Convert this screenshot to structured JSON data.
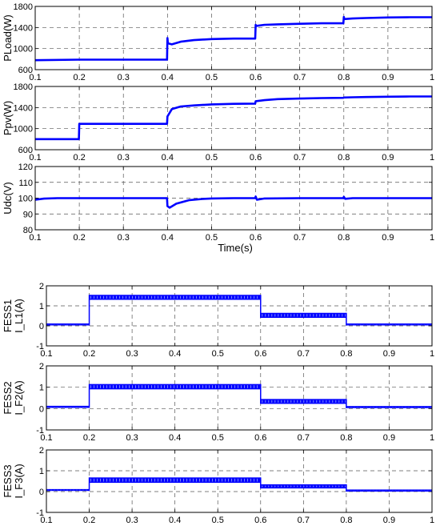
{
  "chart_data": [
    {
      "type": "line",
      "ylabel": "PLoad(W)",
      "xlabel": "",
      "xlim": [
        0.1,
        1.0
      ],
      "ylim": [
        600,
        1800
      ],
      "xticks": [
        "0.1",
        "0.2",
        "0.3",
        "0.4",
        "0.5",
        "0.6",
        "0.7",
        "0.8",
        "0.9",
        "1"
      ],
      "yticks": [
        "600",
        "1000",
        "1400",
        "1800"
      ],
      "grid": true,
      "series": [
        {
          "color": "#0000ff",
          "x": [
            0.1,
            0.2,
            0.3,
            0.399,
            0.4,
            0.401,
            0.41,
            0.43,
            0.46,
            0.5,
            0.55,
            0.599,
            0.6,
            0.601,
            0.62,
            0.65,
            0.7,
            0.75,
            0.799,
            0.8,
            0.801,
            0.82,
            0.85,
            0.9,
            0.95,
            1.0
          ],
          "y": [
            780,
            790,
            790,
            790,
            1200,
            1100,
            1080,
            1130,
            1160,
            1180,
            1190,
            1190,
            1450,
            1430,
            1450,
            1460,
            1470,
            1480,
            1480,
            1600,
            1560,
            1570,
            1580,
            1590,
            1595,
            1595
          ]
        }
      ]
    },
    {
      "type": "line",
      "ylabel": "Ppv(W)",
      "xlabel": "",
      "xlim": [
        0.1,
        1.0
      ],
      "ylim": [
        600,
        1800
      ],
      "xticks": [
        "0.1",
        "0.2",
        "0.3",
        "0.4",
        "0.5",
        "0.6",
        "0.7",
        "0.8",
        "0.9",
        "1"
      ],
      "yticks": [
        "600",
        "1000",
        "1400",
        "1800"
      ],
      "grid": true,
      "series": [
        {
          "color": "#0000ff",
          "x": [
            0.1,
            0.199,
            0.2,
            0.3,
            0.399,
            0.4,
            0.41,
            0.43,
            0.46,
            0.5,
            0.55,
            0.599,
            0.6,
            0.62,
            0.65,
            0.7,
            0.75,
            0.799,
            0.8,
            0.82,
            0.85,
            0.9,
            0.95,
            1.0
          ],
          "y": [
            800,
            800,
            1090,
            1090,
            1090,
            1230,
            1370,
            1420,
            1440,
            1460,
            1470,
            1475,
            1520,
            1540,
            1560,
            1570,
            1580,
            1585,
            1590,
            1595,
            1600,
            1605,
            1610,
            1610
          ]
        }
      ]
    },
    {
      "type": "line",
      "ylabel": "Udc(V)",
      "xlabel": "Time(s)",
      "xlim": [
        0.1,
        1.0
      ],
      "ylim": [
        80,
        120
      ],
      "xticks": [
        "0.1",
        "0.2",
        "0.3",
        "0.4",
        "0.5",
        "0.6",
        "0.7",
        "0.8",
        "0.9",
        "1"
      ],
      "yticks": [
        "80",
        "90",
        "100",
        "110",
        "120"
      ],
      "grid": true,
      "series": [
        {
          "color": "#0000ff",
          "x": [
            0.1,
            0.12,
            0.15,
            0.2,
            0.3,
            0.399,
            0.4,
            0.405,
            0.42,
            0.45,
            0.48,
            0.5,
            0.55,
            0.599,
            0.6,
            0.603,
            0.62,
            0.7,
            0.799,
            0.8,
            0.803,
            0.82,
            0.9,
            1.0
          ],
          "y": [
            99,
            99.7,
            100,
            100,
            100,
            100,
            95,
            94,
            96.5,
            98.8,
            99.5,
            99.8,
            100,
            100,
            101,
            99,
            99.8,
            100,
            100,
            100.8,
            99.6,
            100,
            100,
            100
          ]
        }
      ]
    },
    {
      "type": "area",
      "ylabel": "FESS1",
      "ylabel_sub": "I_L1(A)",
      "xlim": [
        0.1,
        1.0
      ],
      "ylim": [
        -1,
        2
      ],
      "xticks": [
        "0.1",
        "0.2",
        "0.3",
        "0.4",
        "0.5",
        "0.6",
        "0.7",
        "0.8",
        "0.9",
        "1"
      ],
      "yticks": [
        "-1",
        "0",
        "1",
        "2"
      ],
      "grid": true,
      "color": "#0000ff",
      "segments": [
        {
          "x0": 0.1,
          "x1": 0.2,
          "low": 0.02,
          "high": 0.12
        },
        {
          "x0": 0.2,
          "x1": 0.6,
          "low": 1.3,
          "high": 1.55
        },
        {
          "x0": 0.6,
          "x1": 0.8,
          "low": 0.4,
          "high": 0.65
        },
        {
          "x0": 0.8,
          "x1": 1.0,
          "low": 0.02,
          "high": 0.12
        }
      ]
    },
    {
      "type": "area",
      "ylabel": "FESS2",
      "ylabel_sub": "I_F2(A)",
      "xlim": [
        0.1,
        1.0
      ],
      "ylim": [
        -1,
        2
      ],
      "xticks": [
        "0.1",
        "0.2",
        "0.3",
        "0.4",
        "0.5",
        "0.6",
        "0.7",
        "0.8",
        "0.9",
        "1"
      ],
      "yticks": [
        "-1",
        "0",
        "1",
        "2"
      ],
      "grid": true,
      "color": "#0000ff",
      "segments": [
        {
          "x0": 0.1,
          "x1": 0.2,
          "low": 0.03,
          "high": 0.13
        },
        {
          "x0": 0.2,
          "x1": 0.6,
          "low": 0.9,
          "high": 1.15
        },
        {
          "x0": 0.6,
          "x1": 0.8,
          "low": 0.22,
          "high": 0.45
        },
        {
          "x0": 0.8,
          "x1": 1.0,
          "low": 0.02,
          "high": 0.12
        }
      ]
    },
    {
      "type": "area",
      "ylabel": "FESS3",
      "ylabel_sub": "I_F3(A)",
      "xlim": [
        0.1,
        1.0
      ],
      "ylim": [
        -1,
        2
      ],
      "xticks": [
        "0.1",
        "0.2",
        "0.3",
        "0.4",
        "0.5",
        "0.6",
        "0.7",
        "0.8",
        "0.9",
        "1"
      ],
      "yticks": [
        "-1",
        "0",
        "1",
        "2"
      ],
      "grid": true,
      "color": "#0000ff",
      "segments": [
        {
          "x0": 0.1,
          "x1": 0.2,
          "low": 0.03,
          "high": 0.12
        },
        {
          "x0": 0.2,
          "x1": 0.6,
          "low": 0.42,
          "high": 0.68
        },
        {
          "x0": 0.6,
          "x1": 0.8,
          "low": 0.15,
          "high": 0.35
        },
        {
          "x0": 0.8,
          "x1": 1.0,
          "low": 0.0,
          "high": 0.1
        }
      ]
    }
  ]
}
